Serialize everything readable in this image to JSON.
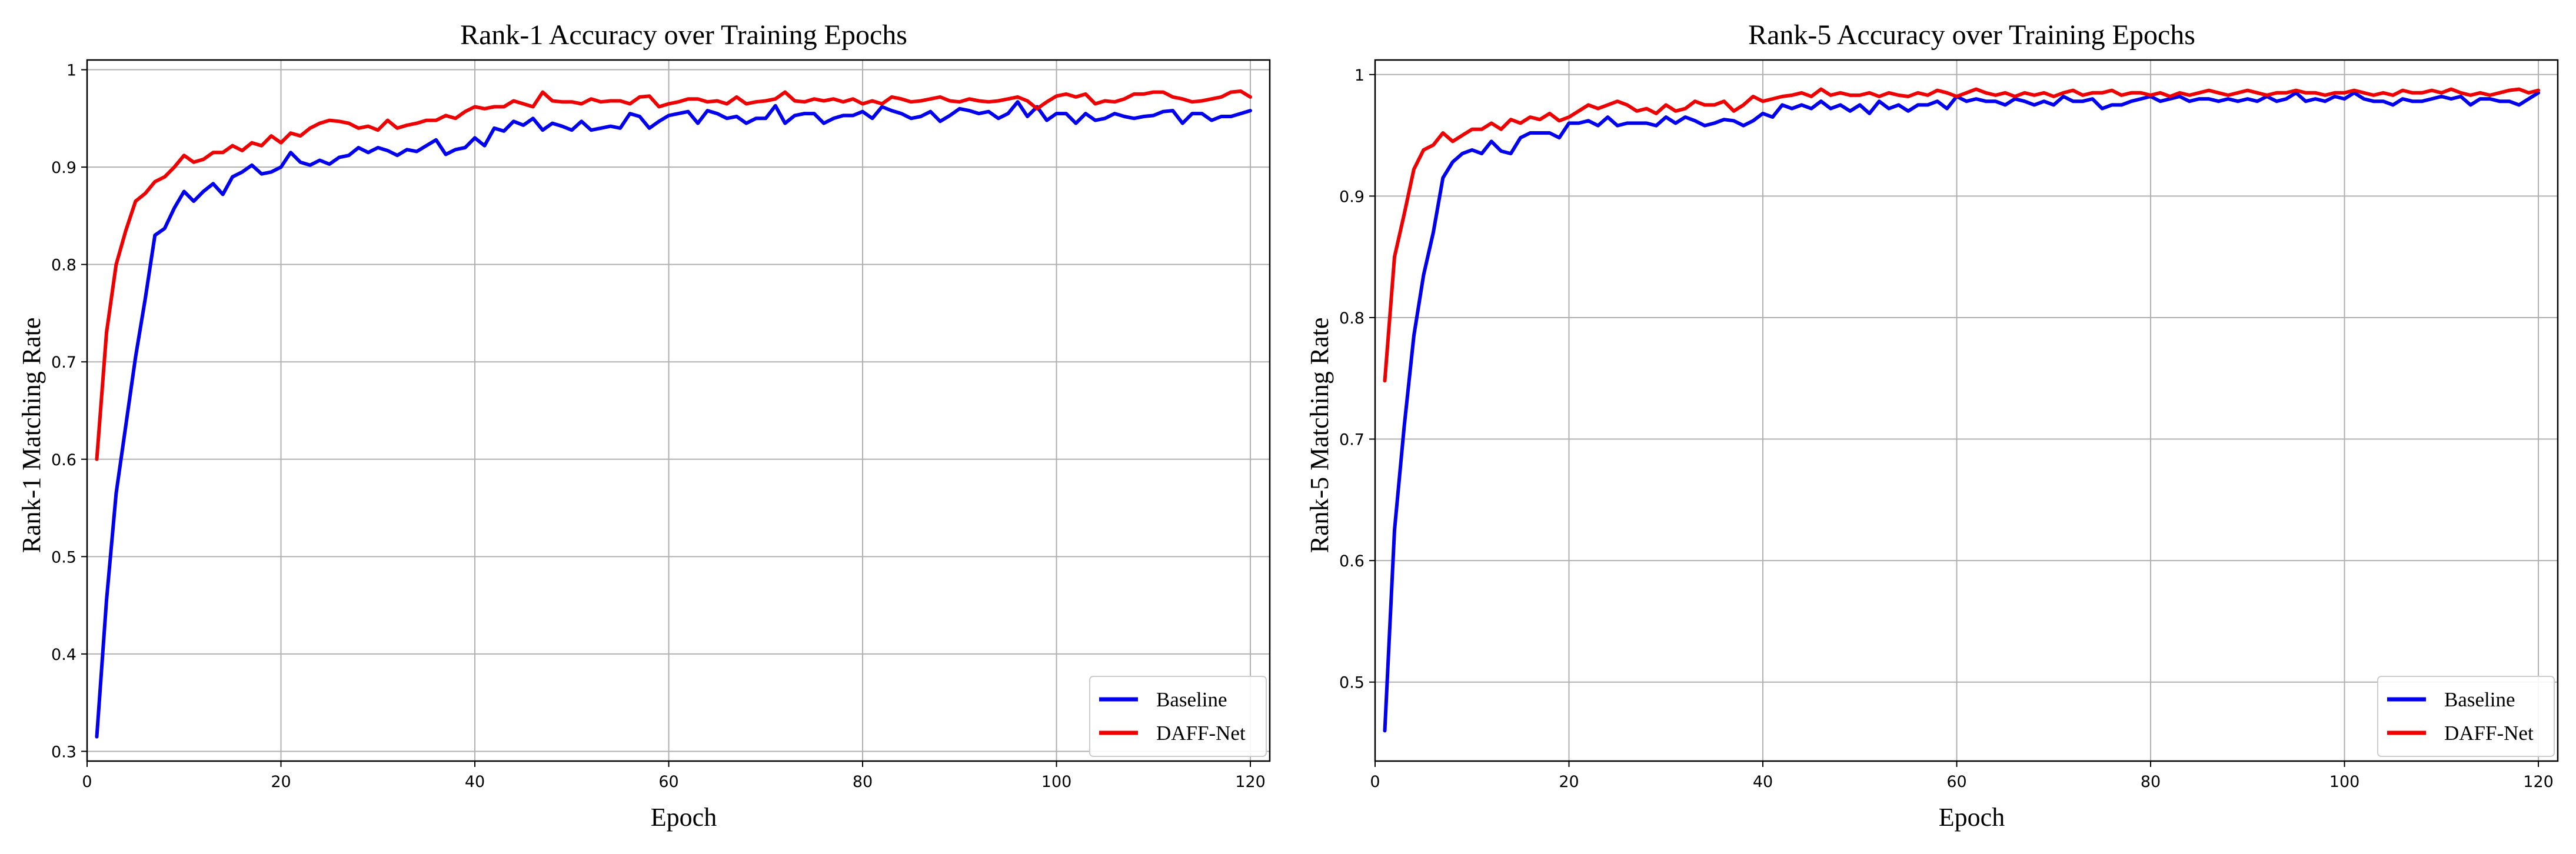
{
  "chart_data": [
    {
      "type": "line",
      "title": "Rank-1 Accuracy over Training Epochs",
      "xlabel": "Epoch",
      "ylabel": "Rank-1 Matching Rate",
      "xlim": [
        0,
        122
      ],
      "ylim": [
        0.29,
        1.01
      ],
      "xticks": [
        0,
        20,
        40,
        60,
        80,
        100,
        120
      ],
      "yticks": [
        0.3,
        0.4,
        0.5,
        0.6,
        0.7,
        0.8,
        0.9,
        1.0
      ],
      "grid": true,
      "legend_position": "lower-right",
      "x": [
        1,
        2,
        3,
        4,
        5,
        6,
        7,
        8,
        9,
        10,
        11,
        12,
        13,
        14,
        15,
        16,
        17,
        18,
        19,
        20,
        21,
        22,
        23,
        24,
        25,
        26,
        27,
        28,
        29,
        30,
        31,
        32,
        33,
        34,
        35,
        36,
        37,
        38,
        39,
        40,
        41,
        42,
        43,
        44,
        45,
        46,
        47,
        48,
        49,
        50,
        51,
        52,
        53,
        54,
        55,
        56,
        57,
        58,
        59,
        60,
        61,
        62,
        63,
        64,
        65,
        66,
        67,
        68,
        69,
        70,
        71,
        72,
        73,
        74,
        75,
        76,
        77,
        78,
        79,
        80,
        81,
        82,
        83,
        84,
        85,
        86,
        87,
        88,
        89,
        90,
        91,
        92,
        93,
        94,
        95,
        96,
        97,
        98,
        99,
        100,
        101,
        102,
        103,
        104,
        105,
        106,
        107,
        108,
        109,
        110,
        111,
        112,
        113,
        114,
        115,
        116,
        117,
        118,
        119,
        120
      ],
      "series": [
        {
          "name": "Baseline",
          "color": "#0000ee",
          "values": [
            0.315,
            0.455,
            0.565,
            0.635,
            0.705,
            0.765,
            0.83,
            0.837,
            0.858,
            0.875,
            0.865,
            0.875,
            0.883,
            0.872,
            0.89,
            0.895,
            0.902,
            0.893,
            0.895,
            0.9,
            0.915,
            0.905,
            0.902,
            0.907,
            0.903,
            0.91,
            0.912,
            0.92,
            0.915,
            0.92,
            0.917,
            0.912,
            0.918,
            0.916,
            0.922,
            0.928,
            0.913,
            0.918,
            0.92,
            0.93,
            0.922,
            0.94,
            0.937,
            0.947,
            0.943,
            0.95,
            0.938,
            0.945,
            0.942,
            0.938,
            0.947,
            0.938,
            0.94,
            0.942,
            0.94,
            0.955,
            0.952,
            0.94,
            0.947,
            0.953,
            0.955,
            0.957,
            0.945,
            0.958,
            0.955,
            0.95,
            0.952,
            0.945,
            0.95,
            0.95,
            0.963,
            0.945,
            0.953,
            0.955,
            0.955,
            0.945,
            0.95,
            0.953,
            0.953,
            0.957,
            0.95,
            0.962,
            0.958,
            0.955,
            0.95,
            0.952,
            0.957,
            0.947,
            0.953,
            0.96,
            0.958,
            0.955,
            0.957,
            0.95,
            0.955,
            0.967,
            0.952,
            0.962,
            0.948,
            0.955,
            0.955,
            0.945,
            0.955,
            0.948,
            0.95,
            0.955,
            0.952,
            0.95,
            0.952,
            0.953,
            0.957,
            0.958,
            0.945,
            0.955,
            0.955,
            0.948,
            0.952,
            0.952,
            0.955,
            0.958
          ]
        },
        {
          "name": "DAFF-Net",
          "color": "#ee0000",
          "values": [
            0.6,
            0.73,
            0.8,
            0.835,
            0.865,
            0.873,
            0.885,
            0.89,
            0.9,
            0.912,
            0.905,
            0.908,
            0.915,
            0.915,
            0.922,
            0.917,
            0.925,
            0.922,
            0.932,
            0.925,
            0.935,
            0.932,
            0.94,
            0.945,
            0.948,
            0.947,
            0.945,
            0.94,
            0.942,
            0.938,
            0.948,
            0.94,
            0.943,
            0.945,
            0.948,
            0.948,
            0.953,
            0.95,
            0.957,
            0.962,
            0.96,
            0.962,
            0.962,
            0.968,
            0.965,
            0.962,
            0.977,
            0.968,
            0.967,
            0.967,
            0.965,
            0.97,
            0.967,
            0.968,
            0.968,
            0.965,
            0.972,
            0.973,
            0.962,
            0.965,
            0.967,
            0.97,
            0.97,
            0.967,
            0.968,
            0.965,
            0.972,
            0.965,
            0.967,
            0.968,
            0.97,
            0.977,
            0.968,
            0.967,
            0.97,
            0.968,
            0.97,
            0.967,
            0.97,
            0.965,
            0.968,
            0.965,
            0.972,
            0.97,
            0.967,
            0.968,
            0.97,
            0.972,
            0.968,
            0.967,
            0.97,
            0.968,
            0.967,
            0.968,
            0.97,
            0.972,
            0.968,
            0.96,
            0.967,
            0.973,
            0.975,
            0.972,
            0.975,
            0.965,
            0.968,
            0.967,
            0.97,
            0.975,
            0.975,
            0.977,
            0.977,
            0.972,
            0.97,
            0.967,
            0.968,
            0.97,
            0.972,
            0.977,
            0.978,
            0.972
          ]
        }
      ]
    },
    {
      "type": "line",
      "title": "Rank-5 Accuracy over Training Epochs",
      "xlabel": "Epoch",
      "ylabel": "Rank-5 Matching Rate",
      "xlim": [
        0,
        122
      ],
      "ylim": [
        0.435,
        1.012
      ],
      "xticks": [
        0,
        20,
        40,
        60,
        80,
        100,
        120
      ],
      "yticks": [
        0.5,
        0.6,
        0.7,
        0.8,
        0.9,
        1.0
      ],
      "grid": true,
      "legend_position": "lower-right",
      "x": [
        1,
        2,
        3,
        4,
        5,
        6,
        7,
        8,
        9,
        10,
        11,
        12,
        13,
        14,
        15,
        16,
        17,
        18,
        19,
        20,
        21,
        22,
        23,
        24,
        25,
        26,
        27,
        28,
        29,
        30,
        31,
        32,
        33,
        34,
        35,
        36,
        37,
        38,
        39,
        40,
        41,
        42,
        43,
        44,
        45,
        46,
        47,
        48,
        49,
        50,
        51,
        52,
        53,
        54,
        55,
        56,
        57,
        58,
        59,
        60,
        61,
        62,
        63,
        64,
        65,
        66,
        67,
        68,
        69,
        70,
        71,
        72,
        73,
        74,
        75,
        76,
        77,
        78,
        79,
        80,
        81,
        82,
        83,
        84,
        85,
        86,
        87,
        88,
        89,
        90,
        91,
        92,
        93,
        94,
        95,
        96,
        97,
        98,
        99,
        100,
        101,
        102,
        103,
        104,
        105,
        106,
        107,
        108,
        109,
        110,
        111,
        112,
        113,
        114,
        115,
        116,
        117,
        118,
        119,
        120
      ],
      "series": [
        {
          "name": "Baseline",
          "color": "#0000ee",
          "values": [
            0.46,
            0.625,
            0.71,
            0.785,
            0.835,
            0.87,
            0.915,
            0.928,
            0.935,
            0.938,
            0.935,
            0.945,
            0.937,
            0.935,
            0.948,
            0.952,
            0.952,
            0.952,
            0.948,
            0.96,
            0.96,
            0.962,
            0.958,
            0.965,
            0.958,
            0.96,
            0.96,
            0.96,
            0.958,
            0.965,
            0.96,
            0.965,
            0.962,
            0.958,
            0.96,
            0.963,
            0.962,
            0.958,
            0.962,
            0.968,
            0.965,
            0.975,
            0.972,
            0.975,
            0.972,
            0.978,
            0.972,
            0.975,
            0.97,
            0.975,
            0.968,
            0.978,
            0.972,
            0.975,
            0.97,
            0.975,
            0.975,
            0.978,
            0.972,
            0.982,
            0.978,
            0.98,
            0.978,
            0.978,
            0.975,
            0.98,
            0.978,
            0.975,
            0.978,
            0.975,
            0.982,
            0.978,
            0.978,
            0.98,
            0.972,
            0.975,
            0.975,
            0.978,
            0.98,
            0.982,
            0.978,
            0.98,
            0.982,
            0.978,
            0.98,
            0.98,
            0.978,
            0.98,
            0.978,
            0.98,
            0.978,
            0.982,
            0.978,
            0.98,
            0.985,
            0.978,
            0.98,
            0.978,
            0.982,
            0.98,
            0.985,
            0.98,
            0.978,
            0.978,
            0.975,
            0.98,
            0.978,
            0.978,
            0.98,
            0.982,
            0.98,
            0.982,
            0.975,
            0.98,
            0.98,
            0.978,
            0.978,
            0.975,
            0.98,
            0.985
          ]
        },
        {
          "name": "DAFF-Net",
          "color": "#ee0000",
          "values": [
            0.748,
            0.85,
            0.885,
            0.922,
            0.938,
            0.942,
            0.952,
            0.945,
            0.95,
            0.955,
            0.955,
            0.96,
            0.955,
            0.963,
            0.96,
            0.965,
            0.963,
            0.968,
            0.962,
            0.965,
            0.97,
            0.975,
            0.972,
            0.975,
            0.978,
            0.975,
            0.97,
            0.972,
            0.968,
            0.975,
            0.97,
            0.972,
            0.978,
            0.975,
            0.975,
            0.978,
            0.97,
            0.975,
            0.982,
            0.978,
            0.98,
            0.982,
            0.983,
            0.985,
            0.982,
            0.988,
            0.983,
            0.985,
            0.983,
            0.983,
            0.985,
            0.982,
            0.985,
            0.983,
            0.982,
            0.985,
            0.983,
            0.987,
            0.985,
            0.982,
            0.985,
            0.988,
            0.985,
            0.983,
            0.985,
            0.982,
            0.985,
            0.983,
            0.985,
            0.982,
            0.985,
            0.987,
            0.983,
            0.985,
            0.985,
            0.987,
            0.983,
            0.985,
            0.985,
            0.983,
            0.985,
            0.982,
            0.985,
            0.983,
            0.985,
            0.987,
            0.985,
            0.983,
            0.985,
            0.987,
            0.985,
            0.983,
            0.985,
            0.985,
            0.987,
            0.985,
            0.985,
            0.983,
            0.985,
            0.985,
            0.987,
            0.985,
            0.983,
            0.985,
            0.983,
            0.987,
            0.985,
            0.985,
            0.987,
            0.985,
            0.988,
            0.985,
            0.983,
            0.985,
            0.983,
            0.985,
            0.987,
            0.988,
            0.985,
            0.987
          ]
        }
      ]
    }
  ]
}
